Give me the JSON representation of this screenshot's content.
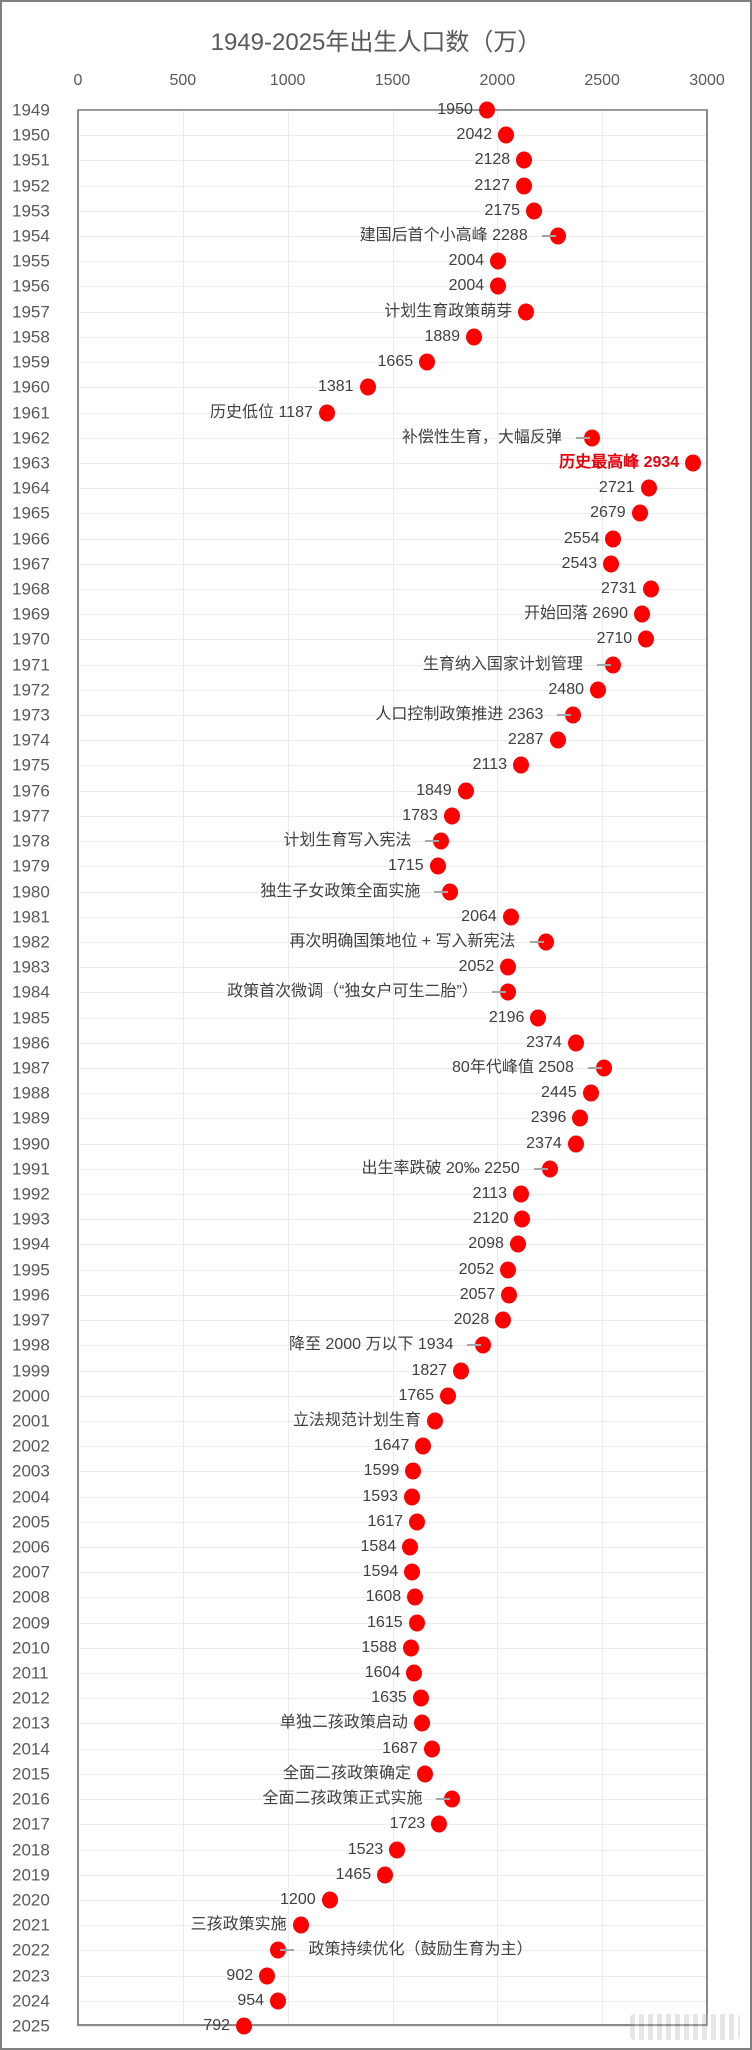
{
  "chart_data": {
    "type": "scatter",
    "orientation": "horizontal-dot-plot",
    "title": "1949-2025年出生人口数（万）",
    "xlabel": "",
    "ylabel": "",
    "xlim": [
      0,
      3000
    ],
    "x_ticks": [
      "0",
      "500",
      "1000",
      "1500",
      "2000",
      "2500",
      "3000"
    ],
    "grid": true,
    "legend": null,
    "marker_color": "#ff0000",
    "highlight_color": "#e8000b",
    "categories": [
      "1949",
      "1950",
      "1951",
      "1952",
      "1953",
      "1954",
      "1955",
      "1956",
      "1957",
      "1958",
      "1959",
      "1960",
      "1961",
      "1962",
      "1963",
      "1964",
      "1965",
      "1966",
      "1967",
      "1968",
      "1969",
      "1970",
      "1971",
      "1972",
      "1973",
      "1974",
      "1975",
      "1976",
      "1977",
      "1978",
      "1979",
      "1980",
      "1981",
      "1982",
      "1983",
      "1984",
      "1985",
      "1986",
      "1987",
      "1988",
      "1989",
      "1990",
      "1991",
      "1992",
      "1993",
      "1994",
      "1995",
      "1996",
      "1997",
      "1998",
      "1999",
      "2000",
      "2001",
      "2002",
      "2003",
      "2004",
      "2005",
      "2006",
      "2007",
      "2008",
      "2009",
      "2010",
      "2011",
      "2012",
      "2013",
      "2014",
      "2015",
      "2016",
      "2017",
      "2018",
      "2019",
      "2020",
      "2021",
      "2022",
      "2023",
      "2024",
      "2025"
    ],
    "values": [
      1950,
      2042,
      2128,
      2127,
      2175,
      2288,
      2004,
      2004,
      2138,
      1889,
      1665,
      1381,
      1187,
      2451,
      2934,
      2721,
      2679,
      2554,
      2543,
      2731,
      2690,
      2710,
      2551,
      2480,
      2363,
      2287,
      2113,
      1849,
      1783,
      1733,
      1715,
      1776,
      2064,
      2230,
      2052,
      2050,
      2196,
      2374,
      2508,
      2445,
      2396,
      2374,
      2250,
      2113,
      2120,
      2098,
      2052,
      2057,
      2028,
      1934,
      1827,
      1765,
      1702,
      1647,
      1599,
      1593,
      1617,
      1584,
      1594,
      1608,
      1615,
      1588,
      1604,
      1635,
      1640,
      1687,
      1655,
      1786,
      1723,
      1523,
      1465,
      1200,
      1062,
      956,
      902,
      954,
      792
    ],
    "labels": [
      "1950",
      "2042",
      "2128",
      "2127",
      "2175",
      "建国后首个小高峰 2288",
      "2004",
      "2004",
      "计划生育政策萌芽",
      "1889",
      "1665",
      "1381",
      "历史低位 1187",
      "补偿性生育，大幅反弹",
      "历史最高峰 2934",
      "2721",
      "2679",
      "2554",
      "2543",
      "2731",
      "开始回落 2690",
      "2710",
      "生育纳入国家计划管理",
      "2480",
      "人口控制政策推进 2363",
      "2287",
      "2113",
      "1849",
      "1783",
      "计划生育写入宪法",
      "1715",
      "独生子女政策全面实施",
      "2064",
      "再次明确国策地位 + 写入新宪法",
      "2052",
      "政策首次微调（“独女户可生二胎”）",
      "2196",
      "2374",
      "80年代峰值 2508",
      "2445",
      "2396",
      "2374",
      "出生率跌破 20‰ 2250",
      "2113",
      "2120",
      "2098",
      "2052",
      "2057",
      "2028",
      "降至 2000 万以下 1934",
      "1827",
      "1765",
      "立法规范计划生育",
      "1647",
      "1599",
      "1593",
      "1617",
      "1584",
      "1594",
      "1608",
      "1615",
      "1588",
      "1604",
      "1635",
      "单独二孩政策启动",
      "1687",
      "全面二孩政策确定",
      "全面二孩政策正式实施",
      "1723",
      "1523",
      "1465",
      "1200",
      "三孩政策实施",
      "政策持续优化（鼓励生育为主）",
      "902",
      "954",
      "792"
    ],
    "label_side": [
      "left",
      "left",
      "left",
      "left",
      "left",
      "left",
      "left",
      "left",
      "left",
      "left",
      "left",
      "left",
      "left",
      "left",
      "left",
      "left",
      "left",
      "left",
      "left",
      "left",
      "left",
      "left",
      "left",
      "left",
      "left",
      "left",
      "left",
      "left",
      "left",
      "left",
      "left",
      "left",
      "left",
      "left",
      "left",
      "left",
      "left",
      "left",
      "left",
      "left",
      "left",
      "left",
      "left",
      "left",
      "left",
      "left",
      "left",
      "left",
      "left",
      "left",
      "left",
      "left",
      "left",
      "left",
      "left",
      "left",
      "left",
      "left",
      "left",
      "left",
      "left",
      "left",
      "left",
      "left",
      "left",
      "left",
      "left",
      "left",
      "left",
      "left",
      "left",
      "left",
      "left",
      "right",
      "left",
      "left",
      "left"
    ],
    "has_leader": [
      false,
      false,
      false,
      false,
      false,
      true,
      false,
      false,
      false,
      false,
      false,
      false,
      false,
      true,
      false,
      false,
      false,
      false,
      false,
      false,
      false,
      false,
      true,
      false,
      true,
      false,
      false,
      false,
      false,
      true,
      false,
      true,
      false,
      true,
      false,
      true,
      false,
      false,
      true,
      false,
      false,
      false,
      true,
      false,
      false,
      false,
      false,
      false,
      false,
      true,
      false,
      false,
      false,
      false,
      false,
      false,
      false,
      false,
      false,
      false,
      false,
      false,
      false,
      false,
      false,
      false,
      false,
      true,
      false,
      false,
      false,
      false,
      false,
      true,
      false,
      false,
      false
    ],
    "highlight_index": 14
  }
}
